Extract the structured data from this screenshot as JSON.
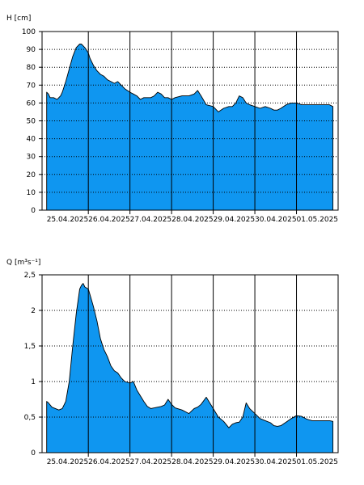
{
  "chart_data": [
    {
      "type": "area",
      "ylabel": "H [cm]",
      "ylim": [
        0,
        100
      ],
      "yticks": [
        0,
        10,
        20,
        30,
        40,
        50,
        60,
        70,
        80,
        90,
        100
      ],
      "ytick_labels": [
        "0",
        "10",
        "20",
        "30",
        "40",
        "50",
        "60",
        "70",
        "80",
        "90",
        "100"
      ],
      "xlim": [
        "2025-04-24T21:20",
        "2025-05-02T00:00"
      ],
      "x_day_lines": [
        "2025-04-26",
        "2025-04-27",
        "2025-04-28",
        "2025-04-29",
        "2025-04-30",
        "2025-05-01"
      ],
      "x_tick_labels": [
        "25.04.2025",
        "26.04.2025",
        "27.04.2025",
        "28.04.2025",
        "29.04.2025",
        "30.04.2025",
        "01.05.2025"
      ],
      "grid": "horizontal dotted",
      "fill_color": "#0f96f0",
      "series": [
        {
          "x": [
            "2025-04-25T00:00",
            "2025-04-25T01:00",
            "2025-04-25T02:00",
            "2025-04-25T04:00",
            "2025-04-25T06:00",
            "2025-04-25T07:00",
            "2025-04-25T08:00",
            "2025-04-25T09:00",
            "2025-04-25T11:00",
            "2025-04-25T13:00",
            "2025-04-25T15:00",
            "2025-04-25T17:00",
            "2025-04-25T19:00",
            "2025-04-25T20:00",
            "2025-04-25T21:00",
            "2025-04-25T22:00",
            "2025-04-26T00:00",
            "2025-04-26T01:00",
            "2025-04-26T03:00",
            "2025-04-26T05:00",
            "2025-04-26T07:00",
            "2025-04-26T09:00",
            "2025-04-26T11:00",
            "2025-04-26T13:00",
            "2025-04-26T15:00",
            "2025-04-26T17:00",
            "2025-04-26T19:00",
            "2025-04-26T21:00",
            "2025-04-27T00:00",
            "2025-04-27T02:00",
            "2025-04-27T04:00",
            "2025-04-27T06:00",
            "2025-04-27T08:00",
            "2025-04-27T10:00",
            "2025-04-27T12:00",
            "2025-04-27T14:00",
            "2025-04-27T16:00",
            "2025-04-27T18:00",
            "2025-04-27T20:00",
            "2025-04-27T22:00",
            "2025-04-28T00:00",
            "2025-04-28T02:00",
            "2025-04-28T06:00",
            "2025-04-28T10:00",
            "2025-04-28T13:00",
            "2025-04-28T15:00",
            "2025-04-28T17:00",
            "2025-04-28T20:00",
            "2025-04-29T00:00",
            "2025-04-29T03:00",
            "2025-04-29T06:00",
            "2025-04-29T09:00",
            "2025-04-29T11:00",
            "2025-04-29T13:00",
            "2025-04-29T15:00",
            "2025-04-29T17:00",
            "2025-04-29T19:00",
            "2025-04-29T21:00",
            "2025-04-30T00:00",
            "2025-04-30T03:00",
            "2025-04-30T06:00",
            "2025-04-30T09:00",
            "2025-04-30T11:00",
            "2025-04-30T13:00",
            "2025-04-30T15:00",
            "2025-04-30T18:00",
            "2025-04-30T21:00",
            "2025-05-01T00:00",
            "2025-05-01T03:00",
            "2025-05-01T06:00",
            "2025-05-01T09:00",
            "2025-05-01T11:00",
            "2025-05-01T13:00",
            "2025-05-01T16:00",
            "2025-05-01T19:00",
            "2025-05-01T21:00"
          ],
          "values": [
            66,
            65,
            63,
            63,
            62,
            63,
            64,
            66,
            72,
            79,
            86,
            91,
            93,
            93,
            92,
            91,
            88,
            85,
            81,
            78,
            76,
            75,
            73,
            72,
            71,
            72,
            70,
            68,
            66,
            65,
            64,
            62,
            63,
            63,
            63,
            64,
            66,
            65,
            63,
            63,
            62,
            63,
            64,
            64,
            65,
            67,
            64,
            59,
            58,
            55,
            57,
            58,
            58,
            60,
            64,
            63,
            60,
            59,
            58,
            57,
            58,
            57,
            56,
            56,
            57,
            59,
            60,
            60,
            59,
            59,
            59,
            59,
            59,
            59,
            59,
            58
          ]
        }
      ]
    },
    {
      "type": "area",
      "ylabel": "Q [m³s⁻¹]",
      "ylim": [
        0,
        2.5
      ],
      "yticks": [
        0,
        0.5,
        1,
        1.5,
        2,
        2.5
      ],
      "ytick_labels": [
        "0",
        "0,5",
        "1",
        "1,5",
        "2",
        "2,5"
      ],
      "xlim": [
        "2025-04-24T21:20",
        "2025-05-02T00:00"
      ],
      "x_day_lines": [
        "2025-04-26",
        "2025-04-27",
        "2025-04-28",
        "2025-04-29",
        "2025-04-30",
        "2025-05-01"
      ],
      "x_tick_labels": [
        "25.04.2025",
        "26.04.2025",
        "27.04.2025",
        "28.04.2025",
        "29.04.2025",
        "30.04.2025",
        "01.05.2025"
      ],
      "grid": "horizontal dotted",
      "fill_color": "#0f96f0",
      "series": [
        {
          "x": [
            "2025-04-25T00:00",
            "2025-04-25T01:00",
            "2025-04-25T03:00",
            "2025-04-25T05:00",
            "2025-04-25T07:00",
            "2025-04-25T09:00",
            "2025-04-25T11:00",
            "2025-04-25T13:00",
            "2025-04-25T15:00",
            "2025-04-25T17:00",
            "2025-04-25T19:00",
            "2025-04-25T20:00",
            "2025-04-25T21:00",
            "2025-04-25T22:00",
            "2025-04-26T00:00",
            "2025-04-26T01:00",
            "2025-04-26T03:00",
            "2025-04-26T05:00",
            "2025-04-26T07:00",
            "2025-04-26T09:00",
            "2025-04-26T11:00",
            "2025-04-26T13:00",
            "2025-04-26T15:00",
            "2025-04-26T17:00",
            "2025-04-26T19:00",
            "2025-04-26T21:00",
            "2025-04-27T00:00",
            "2025-04-27T02:00",
            "2025-04-27T04:00",
            "2025-04-27T06:00",
            "2025-04-27T08:00",
            "2025-04-27T10:00",
            "2025-04-27T12:00",
            "2025-04-27T14:00",
            "2025-04-27T16:00",
            "2025-04-27T18:00",
            "2025-04-27T20:00",
            "2025-04-27T22:00",
            "2025-04-28T00:00",
            "2025-04-28T02:00",
            "2025-04-28T06:00",
            "2025-04-28T10:00",
            "2025-04-28T13:00",
            "2025-04-28T15:00",
            "2025-04-28T17:00",
            "2025-04-28T20:00",
            "2025-04-29T00:00",
            "2025-04-29T03:00",
            "2025-04-29T06:00",
            "2025-04-29T09:00",
            "2025-04-29T11:00",
            "2025-04-29T13:00",
            "2025-04-29T15:00",
            "2025-04-29T17:00",
            "2025-04-29T19:00",
            "2025-04-29T21:00",
            "2025-04-30T00:00",
            "2025-04-30T03:00",
            "2025-04-30T06:00",
            "2025-04-30T09:00",
            "2025-04-30T11:00",
            "2025-04-30T13:00",
            "2025-04-30T15:00",
            "2025-04-30T18:00",
            "2025-04-30T21:00",
            "2025-05-01T00:00",
            "2025-05-01T03:00",
            "2025-05-01T06:00",
            "2025-05-01T09:00",
            "2025-05-01T11:00",
            "2025-05-01T13:00",
            "2025-05-01T16:00",
            "2025-05-01T19:00",
            "2025-05-01T21:00"
          ],
          "values": [
            0.72,
            0.7,
            0.64,
            0.62,
            0.6,
            0.62,
            0.72,
            1.0,
            1.5,
            1.95,
            2.3,
            2.35,
            2.38,
            2.33,
            2.3,
            2.22,
            2.05,
            1.85,
            1.6,
            1.45,
            1.35,
            1.22,
            1.15,
            1.12,
            1.05,
            1.0,
            0.98,
            1.0,
            0.88,
            0.8,
            0.72,
            0.65,
            0.62,
            0.63,
            0.64,
            0.65,
            0.67,
            0.75,
            0.68,
            0.63,
            0.6,
            0.55,
            0.62,
            0.64,
            0.68,
            0.78,
            0.62,
            0.5,
            0.44,
            0.35,
            0.4,
            0.42,
            0.43,
            0.5,
            0.7,
            0.62,
            0.55,
            0.48,
            0.45,
            0.42,
            0.38,
            0.37,
            0.38,
            0.43,
            0.48,
            0.52,
            0.51,
            0.47,
            0.45,
            0.45,
            0.45,
            0.45,
            0.45,
            0.44
          ]
        }
      ]
    }
  ]
}
